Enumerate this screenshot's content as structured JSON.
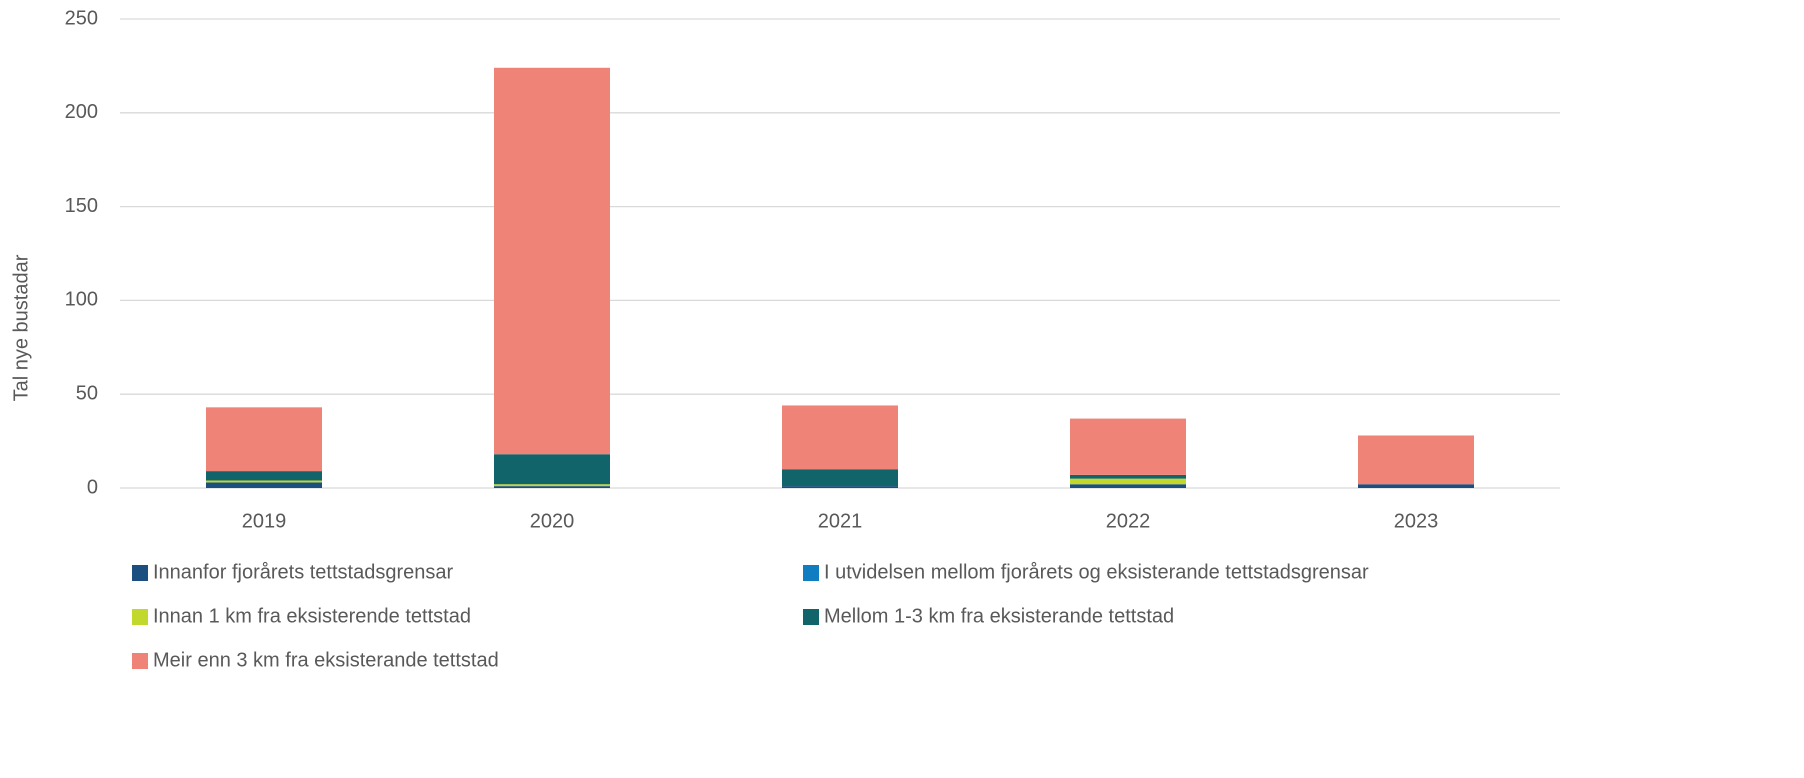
{
  "chart_data": {
    "type": "stacked_bar",
    "y_axis_label": "Tal nye bustadar",
    "categories": [
      "2019",
      "2020",
      "2021",
      "2022",
      "2023"
    ],
    "series": [
      {
        "name": "Innanfor fjorårets tettstadsgrensar",
        "color": "#1a4f80",
        "values": [
          3,
          1,
          1,
          2,
          2
        ]
      },
      {
        "name": "I utvidelsen mellom fjorårets og eksisterande tettstadsgrensar",
        "color": "#0f7dc0",
        "values": [
          0,
          0,
          0,
          0,
          0
        ]
      },
      {
        "name": "Innan 1 km fra eksisterende tettstad",
        "color": "#c3d82c",
        "values": [
          1,
          1,
          0,
          3,
          0
        ]
      },
      {
        "name": "Mellom 1-3 km fra eksisterande tettstad",
        "color": "#10646a",
        "values": [
          5,
          16,
          9,
          2,
          0
        ]
      },
      {
        "name": "Meir enn 3 km fra eksisterande tettstad",
        "color": "#f08377",
        "values": [
          34,
          206,
          34,
          30,
          26
        ]
      }
    ],
    "ylim": [
      0,
      250
    ],
    "yticks": [
      0,
      50,
      100,
      150,
      200,
      250
    ],
    "grid": true
  }
}
